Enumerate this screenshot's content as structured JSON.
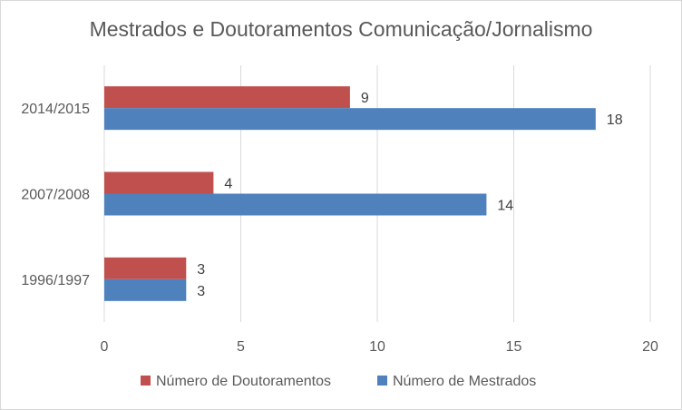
{
  "chart_data": {
    "type": "bar",
    "orientation": "horizontal",
    "title": "Mestrados e Doutoramentos Comunicação/Jornalismo",
    "xlabel": "",
    "ylabel": "",
    "categories": [
      "2014/2015",
      "2007/2008",
      "1996/1997"
    ],
    "series": [
      {
        "name": "Número de Doutoramentos",
        "color": "#c0504d",
        "values": [
          9,
          4,
          3
        ]
      },
      {
        "name": "Número de Mestrados",
        "color": "#4f81bd",
        "values": [
          18,
          14,
          3
        ]
      }
    ],
    "xlim": [
      0,
      20
    ],
    "xticks": [
      0,
      5,
      10,
      15,
      20
    ],
    "grid": "vertical",
    "legend": "bottom"
  }
}
